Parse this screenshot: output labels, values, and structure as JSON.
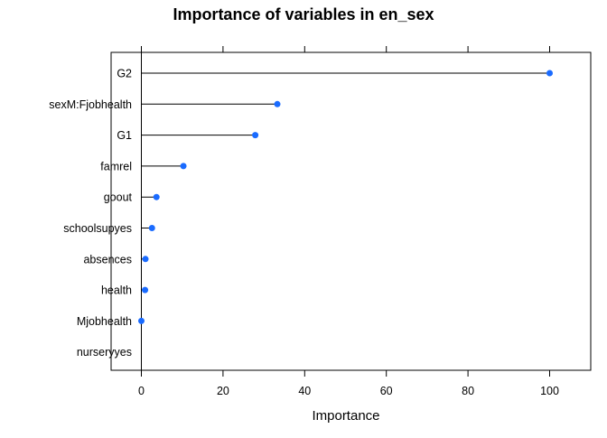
{
  "chart_data": {
    "type": "dot",
    "title": "Importance of variables in en_sex",
    "xlabel": "Importance",
    "ylabel": "",
    "xlim": [
      -7.5,
      102.5
    ],
    "x_ticks": [
      0,
      20,
      40,
      60,
      80,
      100
    ],
    "x_tick_labels": [
      "0",
      "20",
      "40",
      "60",
      "80",
      "100"
    ],
    "categories": [
      "G2",
      "sexM:Fjobhealth",
      "G1",
      "famrel",
      "goout",
      "schoolsupyes",
      "absences",
      "health",
      "Mjobhealth",
      "nurseryyes"
    ],
    "values": [
      100,
      33.3,
      27.9,
      10.3,
      3.7,
      2.6,
      1.0,
      0.9,
      0.0,
      null
    ],
    "point_color": "#1a6bff",
    "line_color": "#000000",
    "grid": false,
    "legend": "none"
  }
}
